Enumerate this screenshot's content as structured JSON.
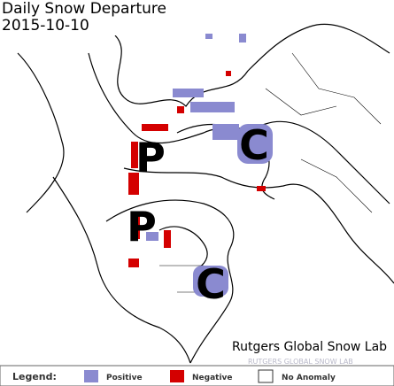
{
  "header": {
    "title": "Daily Snow Departure",
    "date": "2015-10-10"
  },
  "map": {
    "labels": [
      "P",
      "C",
      "P",
      "C"
    ],
    "credit": "Rutgers Global Snow Lab",
    "watermark": "RUTGERS GLOBAL SNOW LAB"
  },
  "legend": {
    "title": "Legend:",
    "items": [
      "Positive",
      "Negative",
      "No Anomaly"
    ]
  }
}
